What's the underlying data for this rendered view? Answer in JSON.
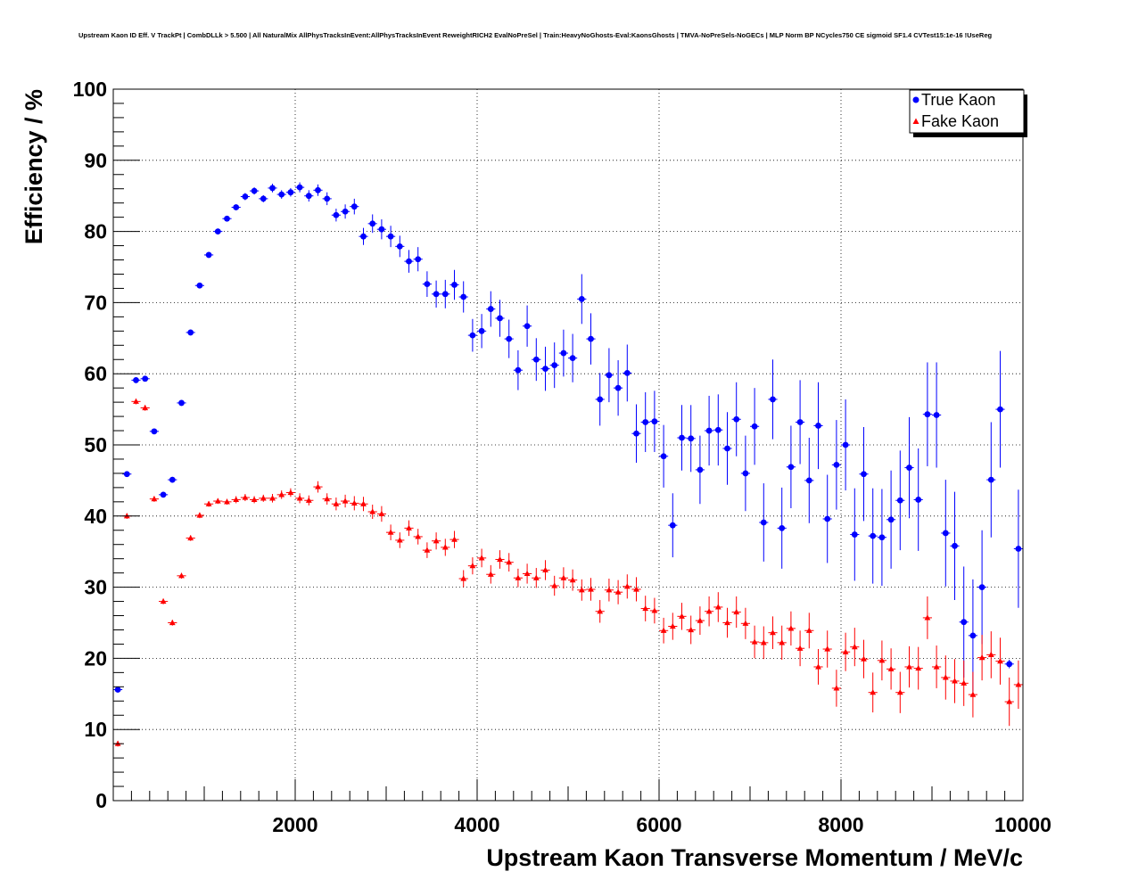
{
  "chart_data": {
    "type": "scatter",
    "title": "Upstream Kaon ID Eff. V TrackPt | CombDLLk > 5.500 | All NaturalMix AllPhysTracksInEvent:AllPhysTracksInEvent ReweightRICH2 EvalNoPreSel | Train:HeavyNoGhosts-Eval:KaonsGhosts | TMVA-NoPreSels-NoGECs | MLP Norm BP NCycles750 CE sigmoid SF1.4 CVTest15:1e-16 !UseReg",
    "xlabel": "Upstream Kaon Transverse Momentum / MeV/c",
    "ylabel": "Efficiency / %",
    "xlim": [
      0,
      10000
    ],
    "ylim": [
      0,
      100
    ],
    "x_ticks": [
      2000,
      4000,
      6000,
      8000,
      10000
    ],
    "y_ticks": [
      0,
      10,
      20,
      30,
      40,
      50,
      60,
      70,
      80,
      90,
      100
    ],
    "x_tick_labels": [
      "2000",
      "4000",
      "6000",
      "8000",
      "10000"
    ],
    "y_tick_labels": [
      "0",
      "10",
      "20",
      "30",
      "40",
      "50",
      "60",
      "70",
      "80",
      "90",
      "100"
    ],
    "grid": true,
    "legend": "top-right",
    "series": [
      {
        "name": "True Kaon",
        "marker": "circle",
        "color": "#0000ff",
        "points": [
          [
            50,
            15.6,
            0.4
          ],
          [
            150,
            45.9,
            0.4
          ],
          [
            250,
            59.1,
            0.4
          ],
          [
            350,
            59.3,
            0.4
          ],
          [
            450,
            51.9,
            0.4
          ],
          [
            550,
            43.0,
            0.4
          ],
          [
            650,
            45.1,
            0.4
          ],
          [
            750,
            55.9,
            0.4
          ],
          [
            850,
            65.8,
            0.4
          ],
          [
            950,
            72.4,
            0.4
          ],
          [
            1050,
            76.7,
            0.4
          ],
          [
            1150,
            80.0,
            0.4
          ],
          [
            1250,
            81.8,
            0.4
          ],
          [
            1350,
            83.4,
            0.4
          ],
          [
            1450,
            84.9,
            0.5
          ],
          [
            1550,
            85.7,
            0.5
          ],
          [
            1650,
            84.6,
            0.5
          ],
          [
            1750,
            86.1,
            0.6
          ],
          [
            1850,
            85.2,
            0.6
          ],
          [
            1950,
            85.5,
            0.6
          ],
          [
            2050,
            86.2,
            0.7
          ],
          [
            2150,
            85.0,
            0.8
          ],
          [
            2250,
            85.8,
            0.8
          ],
          [
            2350,
            84.6,
            0.9
          ],
          [
            2450,
            82.3,
            0.9
          ],
          [
            2550,
            82.8,
            1.0
          ],
          [
            2650,
            83.5,
            1.1
          ],
          [
            2750,
            79.3,
            1.2
          ],
          [
            2850,
            81.1,
            1.3
          ],
          [
            2950,
            80.3,
            1.4
          ],
          [
            3050,
            79.3,
            1.5
          ],
          [
            3150,
            77.9,
            1.5
          ],
          [
            3250,
            75.8,
            1.6
          ],
          [
            3350,
            76.1,
            1.7
          ],
          [
            3450,
            72.6,
            1.8
          ],
          [
            3550,
            71.2,
            1.9
          ],
          [
            3650,
            71.2,
            2.0
          ],
          [
            3750,
            72.5,
            2.1
          ],
          [
            3850,
            70.8,
            2.2
          ],
          [
            3950,
            65.4,
            2.3
          ],
          [
            4050,
            66.0,
            2.4
          ],
          [
            4150,
            69.1,
            2.5
          ],
          [
            4250,
            67.8,
            2.6
          ],
          [
            4350,
            64.9,
            2.7
          ],
          [
            4450,
            60.5,
            2.8
          ],
          [
            4550,
            66.7,
            2.9
          ],
          [
            4650,
            62.0,
            3.0
          ],
          [
            4750,
            60.7,
            3.1
          ],
          [
            4850,
            61.2,
            3.2
          ],
          [
            4950,
            62.9,
            3.3
          ],
          [
            5050,
            62.2,
            3.4
          ],
          [
            5150,
            70.5,
            3.5
          ],
          [
            5250,
            64.9,
            3.6
          ],
          [
            5350,
            56.4,
            3.7
          ],
          [
            5450,
            59.8,
            3.8
          ],
          [
            5550,
            58.0,
            3.9
          ],
          [
            5650,
            60.1,
            4.0
          ],
          [
            5750,
            51.6,
            4.1
          ],
          [
            5850,
            53.2,
            4.2
          ],
          [
            5950,
            53.3,
            4.3
          ],
          [
            6050,
            48.4,
            4.4
          ],
          [
            6150,
            38.7,
            4.5
          ],
          [
            6250,
            51.0,
            4.6
          ],
          [
            6350,
            50.9,
            4.7
          ],
          [
            6450,
            46.5,
            4.8
          ],
          [
            6550,
            52.0,
            4.9
          ],
          [
            6650,
            52.1,
            5.0
          ],
          [
            6750,
            49.5,
            5.1
          ],
          [
            6850,
            53.6,
            5.2
          ],
          [
            6950,
            46.0,
            5.3
          ],
          [
            7050,
            52.6,
            5.4
          ],
          [
            7150,
            39.1,
            5.5
          ],
          [
            7250,
            56.4,
            5.6
          ],
          [
            7350,
            38.3,
            5.7
          ],
          [
            7450,
            46.9,
            5.8
          ],
          [
            7550,
            53.2,
            5.9
          ],
          [
            7650,
            45.0,
            6.0
          ],
          [
            7750,
            52.7,
            6.1
          ],
          [
            7850,
            39.6,
            6.2
          ],
          [
            7950,
            47.2,
            6.3
          ],
          [
            8050,
            50.0,
            6.4
          ],
          [
            8150,
            37.4,
            6.5
          ],
          [
            8250,
            45.9,
            6.6
          ],
          [
            8350,
            37.2,
            6.7
          ],
          [
            8450,
            37.0,
            6.8
          ],
          [
            8550,
            39.5,
            6.9
          ],
          [
            8650,
            42.2,
            7.0
          ],
          [
            8750,
            46.8,
            7.1
          ],
          [
            8850,
            42.3,
            7.2
          ],
          [
            8950,
            54.3,
            7.3
          ],
          [
            9050,
            54.2,
            7.4
          ],
          [
            9150,
            37.6,
            7.5
          ],
          [
            9250,
            35.8,
            7.6
          ],
          [
            9350,
            25.1,
            7.8
          ],
          [
            9450,
            23.2,
            7.9
          ],
          [
            9550,
            30.0,
            8.0
          ],
          [
            9650,
            45.1,
            8.1
          ],
          [
            9750,
            55.0,
            8.2
          ],
          [
            9850,
            19.2,
            0.6
          ],
          [
            9950,
            35.4,
            8.3
          ]
        ]
      },
      {
        "name": "Fake Kaon",
        "marker": "triangle",
        "color": "#ff0000",
        "points": [
          [
            50,
            8.0,
            0.4
          ],
          [
            150,
            40.0,
            0.4
          ],
          [
            250,
            56.1,
            0.4
          ],
          [
            350,
            55.2,
            0.4
          ],
          [
            450,
            42.4,
            0.4
          ],
          [
            550,
            28.0,
            0.4
          ],
          [
            650,
            25.0,
            0.4
          ],
          [
            750,
            31.6,
            0.4
          ],
          [
            850,
            36.9,
            0.4
          ],
          [
            950,
            40.1,
            0.4
          ],
          [
            1050,
            41.7,
            0.4
          ],
          [
            1150,
            42.1,
            0.4
          ],
          [
            1250,
            42.0,
            0.4
          ],
          [
            1350,
            42.3,
            0.5
          ],
          [
            1450,
            42.6,
            0.5
          ],
          [
            1550,
            42.3,
            0.5
          ],
          [
            1650,
            42.5,
            0.5
          ],
          [
            1750,
            42.5,
            0.6
          ],
          [
            1850,
            43.0,
            0.6
          ],
          [
            1950,
            43.3,
            0.6
          ],
          [
            2050,
            42.5,
            0.7
          ],
          [
            2150,
            42.2,
            0.7
          ],
          [
            2250,
            44.1,
            0.8
          ],
          [
            2350,
            42.4,
            0.8
          ],
          [
            2450,
            41.7,
            0.9
          ],
          [
            2550,
            42.1,
            0.9
          ],
          [
            2650,
            41.8,
            1.0
          ],
          [
            2750,
            41.7,
            1.0
          ],
          [
            2850,
            40.6,
            1.0
          ],
          [
            2950,
            40.3,
            1.1
          ],
          [
            3050,
            37.7,
            1.1
          ],
          [
            3150,
            36.6,
            1.1
          ],
          [
            3250,
            38.3,
            1.1
          ],
          [
            3350,
            37.1,
            1.1
          ],
          [
            3450,
            35.2,
            1.1
          ],
          [
            3550,
            36.5,
            1.2
          ],
          [
            3650,
            35.6,
            1.2
          ],
          [
            3750,
            36.7,
            1.2
          ],
          [
            3850,
            31.2,
            1.2
          ],
          [
            3950,
            33.0,
            1.2
          ],
          [
            4050,
            34.1,
            1.3
          ],
          [
            4150,
            31.8,
            1.3
          ],
          [
            4250,
            33.9,
            1.3
          ],
          [
            4350,
            33.5,
            1.3
          ],
          [
            4450,
            31.3,
            1.3
          ],
          [
            4550,
            31.9,
            1.4
          ],
          [
            4650,
            31.3,
            1.4
          ],
          [
            4750,
            32.4,
            1.4
          ],
          [
            4850,
            30.2,
            1.4
          ],
          [
            4950,
            31.3,
            1.5
          ],
          [
            5050,
            31.0,
            1.5
          ],
          [
            5150,
            29.6,
            1.5
          ],
          [
            5250,
            29.7,
            1.6
          ],
          [
            5350,
            26.6,
            1.6
          ],
          [
            5450,
            29.6,
            1.6
          ],
          [
            5550,
            29.3,
            1.7
          ],
          [
            5650,
            30.1,
            1.7
          ],
          [
            5750,
            29.7,
            1.7
          ],
          [
            5850,
            27.0,
            1.8
          ],
          [
            5950,
            26.7,
            1.8
          ],
          [
            6050,
            23.9,
            1.8
          ],
          [
            6150,
            24.5,
            1.9
          ],
          [
            6250,
            25.9,
            1.9
          ],
          [
            6350,
            24.0,
            2.0
          ],
          [
            6450,
            25.3,
            2.0
          ],
          [
            6550,
            26.6,
            2.1
          ],
          [
            6650,
            27.2,
            2.1
          ],
          [
            6750,
            25.0,
            2.1
          ],
          [
            6850,
            26.5,
            2.2
          ],
          [
            6950,
            24.9,
            2.2
          ],
          [
            7050,
            22.3,
            2.3
          ],
          [
            7150,
            22.2,
            2.3
          ],
          [
            7250,
            23.6,
            2.3
          ],
          [
            7350,
            22.2,
            2.4
          ],
          [
            7450,
            24.2,
            2.4
          ],
          [
            7550,
            21.4,
            2.5
          ],
          [
            7650,
            23.9,
            2.5
          ],
          [
            7750,
            18.8,
            2.5
          ],
          [
            7850,
            21.3,
            2.6
          ],
          [
            7950,
            15.8,
            2.6
          ],
          [
            8050,
            20.9,
            2.7
          ],
          [
            8150,
            21.6,
            2.7
          ],
          [
            8250,
            19.9,
            2.7
          ],
          [
            8350,
            15.2,
            2.8
          ],
          [
            8450,
            19.7,
            2.8
          ],
          [
            8550,
            18.5,
            2.9
          ],
          [
            8650,
            15.2,
            2.9
          ],
          [
            8750,
            18.8,
            2.9
          ],
          [
            8850,
            18.6,
            3.0
          ],
          [
            8950,
            25.7,
            3.0
          ],
          [
            9050,
            18.8,
            3.0
          ],
          [
            9150,
            17.3,
            3.1
          ],
          [
            9250,
            16.8,
            3.1
          ],
          [
            9350,
            16.5,
            3.2
          ],
          [
            9450,
            14.9,
            3.2
          ],
          [
            9550,
            20.1,
            3.2
          ],
          [
            9650,
            20.5,
            3.3
          ],
          [
            9750,
            19.6,
            3.3
          ],
          [
            9850,
            13.9,
            3.4
          ],
          [
            9950,
            16.3,
            3.4
          ]
        ]
      }
    ]
  }
}
